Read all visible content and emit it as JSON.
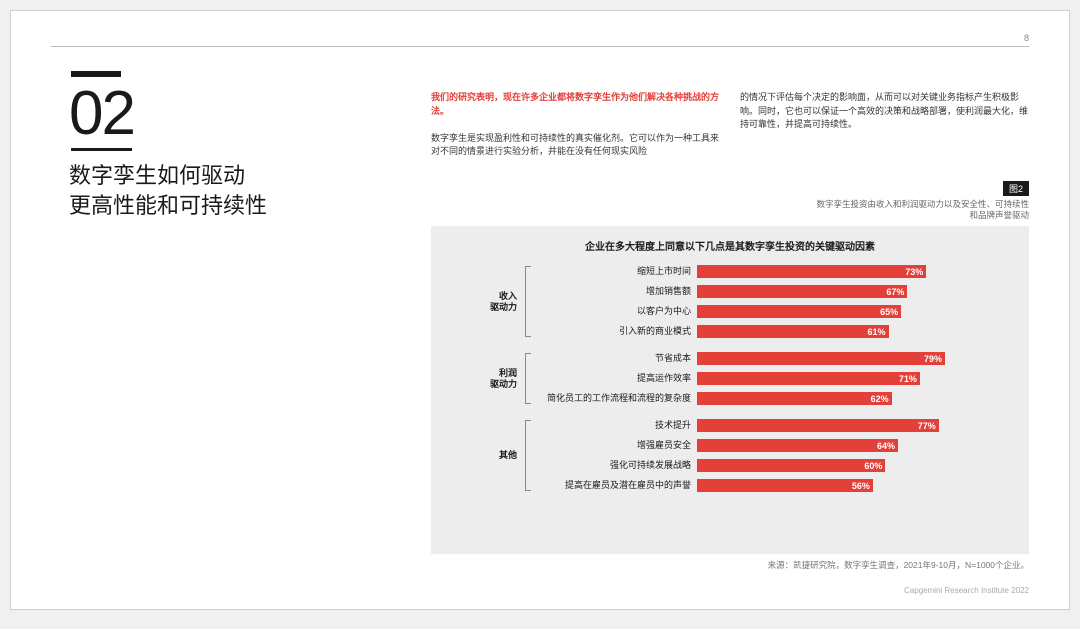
{
  "page_number": "8",
  "section_number": "02",
  "headline_line1": "数字孪生如何驱动",
  "headline_line2": "更高性能和可持续性",
  "col1_lead": "我们的研究表明，现在许多企业都将数字孪生作为他们解决各种挑战的方法。",
  "col1_body": "数字孪生是实现盈利性和可持续性的真实催化剂。它可以作为一种工具来对不同的情景进行实验分析，并能在没有任何现实风险",
  "col2_body": "的情况下评估每个决定的影响面，从而可以对关键业务指标产生积极影响。同时，它也可以保证一个高效的决策和战略部署，使利润最大化，维持可靠性，并提高可持续性。",
  "fig_badge": "图2",
  "fig_caption_l1": "数字孪生投资由收入和利润驱动力以及安全性、可持续性",
  "fig_caption_l2": "和品牌声誉驱动",
  "chart": {
    "title": "企业在多大程度上同意以下几点是其数字孪生投资的关键驱动因素",
    "bar_color": "#e4403a",
    "bar_text_color": "#ffffff",
    "background": "#ededed",
    "max": 100,
    "groups": [
      {
        "label": "收入\n驱动力",
        "bars": [
          {
            "label": "缩短上市时间",
            "value": 73
          },
          {
            "label": "增加销售额",
            "value": 67
          },
          {
            "label": "以客户为中心",
            "value": 65
          },
          {
            "label": "引入新的商业模式",
            "value": 61
          }
        ]
      },
      {
        "label": "利润\n驱动力",
        "bars": [
          {
            "label": "节省成本",
            "value": 79
          },
          {
            "label": "提高运作效率",
            "value": 71
          },
          {
            "label": "简化员工的工作流程和流程的复杂度",
            "value": 62
          }
        ]
      },
      {
        "label": "其他",
        "bars": [
          {
            "label": "技术提升",
            "value": 77
          },
          {
            "label": "增强雇员安全",
            "value": 64
          },
          {
            "label": "强化可持续发展战略",
            "value": 60
          },
          {
            "label": "提高在雇员及潜在雇员中的声誉",
            "value": 56
          }
        ]
      }
    ]
  },
  "source": "来源：凯捷研究院，数字孪生调查，2021年9-10月，N=1000个企业。",
  "footer": "Capgemini Research Institute 2022"
}
